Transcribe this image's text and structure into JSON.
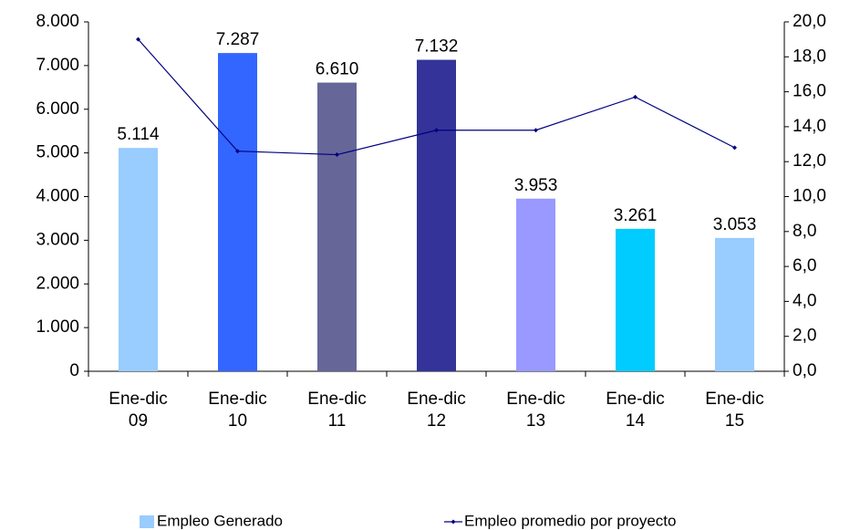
{
  "chart_data": {
    "type": "bar_line",
    "categories": [
      [
        "Ene-dic",
        "09"
      ],
      [
        "Ene-dic",
        "10"
      ],
      [
        "Ene-dic",
        "11"
      ],
      [
        "Ene-dic",
        "12"
      ],
      [
        "Ene-dic",
        "13"
      ],
      [
        "Ene-dic",
        "14"
      ],
      [
        "Ene-dic",
        "15"
      ]
    ],
    "series": [
      {
        "name": "Empleo Generado",
        "type": "bar",
        "color": "#99ccff",
        "colors": [
          "#99ccff",
          "#3366ff",
          "#666699",
          "#333399",
          "#9999ff",
          "#00ccff",
          "#99ccff"
        ],
        "values": [
          5114,
          7287,
          6610,
          7132,
          3953,
          3261,
          3053
        ],
        "value_labels": [
          "5.114",
          "7.287",
          "6.610",
          "7.132",
          "3.953",
          "3.261",
          "3.053"
        ]
      },
      {
        "name": "Empleo promedio por proyecto",
        "type": "line",
        "color": "#000080",
        "axis": "y2",
        "values": [
          19.0,
          12.6,
          12.4,
          13.8,
          13.8,
          15.7,
          12.8
        ]
      }
    ],
    "ylim": [
      0,
      8000
    ],
    "yticks": [
      0,
      {
        "value": 1000,
        "label": "1.000"
      },
      {
        "value": 2000,
        "label": "2.000"
      },
      {
        "value": 3000,
        "label": "3.000"
      },
      {
        "value": 4000,
        "label": "4.000"
      },
      {
        "value": 5000,
        "label": "5.000"
      },
      {
        "value": 6000,
        "label": "6.000"
      },
      {
        "value": 7000,
        "label": "7.000"
      },
      {
        "value": 8000,
        "label": "8.000"
      }
    ],
    "y2lim": [
      0,
      20
    ],
    "y2ticks": [
      {
        "value": 0,
        "label": "0,0"
      },
      {
        "value": 2,
        "label": "2,0"
      },
      {
        "value": 4,
        "label": "4,0"
      },
      {
        "value": 6,
        "label": "6,0"
      },
      {
        "value": 8,
        "label": "8,0"
      },
      {
        "value": 10,
        "label": "10,0"
      },
      {
        "value": 12,
        "label": "12,0"
      },
      {
        "value": 14,
        "label": "14,0"
      },
      {
        "value": 16,
        "label": "16,0"
      },
      {
        "value": 18,
        "label": "18,0"
      },
      {
        "value": 20,
        "label": "20,0"
      }
    ],
    "legend": "bottom"
  }
}
